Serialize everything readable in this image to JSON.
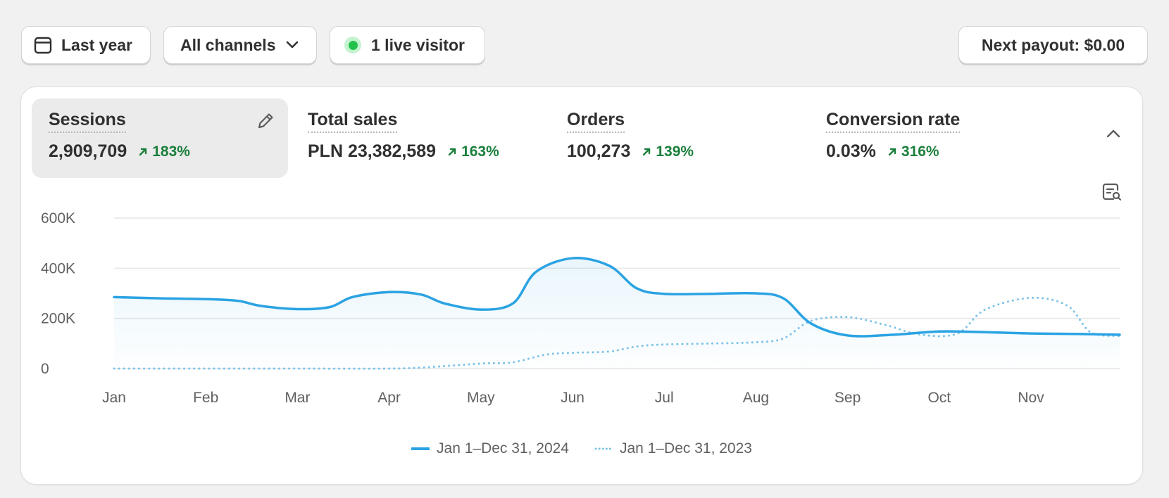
{
  "toolbar": {
    "date_label": "Last year",
    "channels_label": "All channels",
    "live_label": "1 live visitor",
    "payout_label": "Next payout: $0.00"
  },
  "metrics": [
    {
      "title": "Sessions",
      "value": "2,909,709",
      "change": "183%"
    },
    {
      "title": "Total sales",
      "value": "PLN 23,382,589",
      "change": "163%"
    },
    {
      "title": "Orders",
      "value": "100,273",
      "change": "139%"
    },
    {
      "title": "Conversion rate",
      "value": "0.03%",
      "change": "316%"
    }
  ],
  "colors": {
    "accent": "#2ba3e3",
    "comparison": "#7cc3e8",
    "positive": "#1a7f3c",
    "live_dot": "#22c24b"
  },
  "icons": {
    "date": "calendar-icon",
    "channels": "chevron-down-icon",
    "edit": "pencil-icon",
    "collapse": "chevron-up-icon",
    "chart_search": "chart-search-icon"
  },
  "chart_data": {
    "type": "line",
    "x": [
      "Jan",
      "Feb",
      "Mar",
      "Apr",
      "May",
      "Jun",
      "Jul",
      "Aug",
      "Sep",
      "Oct",
      "Nov"
    ],
    "yticks": [
      "600K",
      "400K",
      "200K",
      "0"
    ],
    "ylim": [
      0,
      600000
    ],
    "grid": true,
    "legend_position": "bottom-center",
    "series": [
      {
        "name": "Jan 1–Dec 31, 2024",
        "style": "solid",
        "points": [
          [
            0,
            285000
          ],
          [
            0.5,
            280000
          ],
          [
            1,
            277000
          ],
          [
            1.35,
            270000
          ],
          [
            1.6,
            250000
          ],
          [
            2,
            237000
          ],
          [
            2.35,
            245000
          ],
          [
            2.6,
            285000
          ],
          [
            3,
            305000
          ],
          [
            3.35,
            295000
          ],
          [
            3.6,
            260000
          ],
          [
            4,
            235000
          ],
          [
            4.35,
            260000
          ],
          [
            4.6,
            385000
          ],
          [
            5,
            440000
          ],
          [
            5.4,
            410000
          ],
          [
            5.7,
            320000
          ],
          [
            6,
            298000
          ],
          [
            6.5,
            298000
          ],
          [
            7,
            300000
          ],
          [
            7.3,
            280000
          ],
          [
            7.6,
            180000
          ],
          [
            8,
            132000
          ],
          [
            8.5,
            135000
          ],
          [
            9,
            148000
          ],
          [
            9.5,
            145000
          ],
          [
            10,
            140000
          ],
          [
            10.5,
            138000
          ],
          [
            11,
            135000
          ]
        ]
      },
      {
        "name": "Jan 1–Dec 31, 2023",
        "style": "dotted",
        "points": [
          [
            0,
            0
          ],
          [
            1,
            0
          ],
          [
            2,
            0
          ],
          [
            3,
            0
          ],
          [
            3.4,
            5000
          ],
          [
            4,
            20000
          ],
          [
            4.35,
            25000
          ],
          [
            4.7,
            55000
          ],
          [
            5,
            63000
          ],
          [
            5.4,
            68000
          ],
          [
            5.7,
            88000
          ],
          [
            6,
            96000
          ],
          [
            6.5,
            100000
          ],
          [
            7,
            105000
          ],
          [
            7.3,
            120000
          ],
          [
            7.6,
            190000
          ],
          [
            8,
            205000
          ],
          [
            8.4,
            175000
          ],
          [
            8.8,
            135000
          ],
          [
            9.2,
            140000
          ],
          [
            9.5,
            235000
          ],
          [
            10,
            282000
          ],
          [
            10.4,
            250000
          ],
          [
            10.65,
            145000
          ],
          [
            11,
            130000
          ]
        ]
      }
    ]
  },
  "legend": {
    "current": "Jan 1–Dec 31, 2024",
    "previous": "Jan 1–Dec 31, 2023"
  }
}
